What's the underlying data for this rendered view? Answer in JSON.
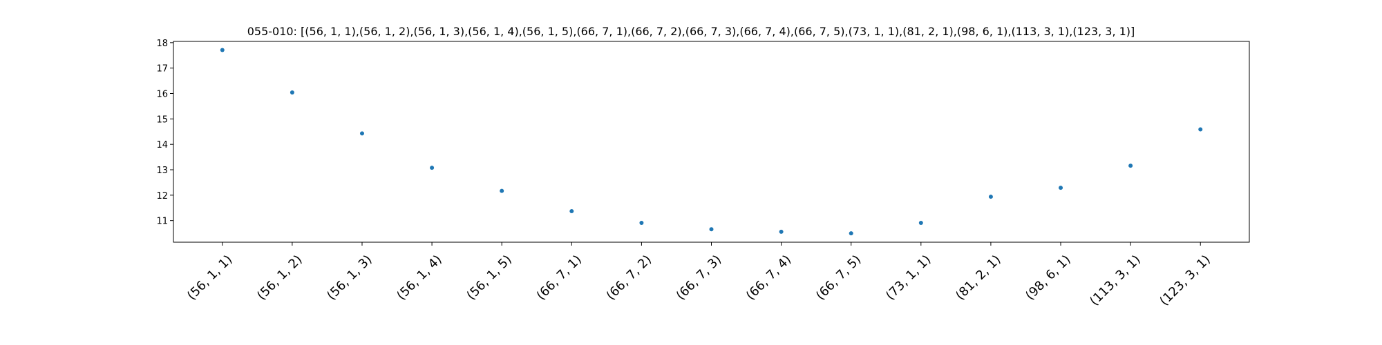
{
  "chart_data": {
    "type": "scatter",
    "title": "055-010: [(56, 1, 1),(56, 1, 2),(56, 1, 3),(56, 1, 4),(56, 1, 5),(66, 7, 1),(66, 7, 2),(66, 7, 3),(66, 7, 4),(66, 7, 5),(73, 1, 1),(81, 2, 1),(98, 6, 1),(113, 3, 1),(123, 3, 1)]",
    "xlabel": "",
    "ylabel": "",
    "categories": [
      "(56, 1, 1)",
      "(56, 1, 2)",
      "(56, 1, 3)",
      "(56, 1, 4)",
      "(56, 1, 5)",
      "(66, 7, 1)",
      "(66, 7, 2)",
      "(66, 7, 3)",
      "(66, 7, 4)",
      "(66, 7, 5)",
      "(73, 1, 1)",
      "(81, 2, 1)",
      "(98, 6, 1)",
      "(113, 3, 1)",
      "(123, 3, 1)"
    ],
    "values": [
      17.71,
      16.04,
      14.43,
      13.08,
      12.17,
      11.37,
      10.91,
      10.66,
      10.56,
      10.5,
      10.91,
      11.94,
      12.29,
      13.16,
      14.59
    ],
    "yticks": [
      11,
      12,
      13,
      14,
      15,
      16,
      17,
      18
    ],
    "ylim": [
      10.15,
      18.05
    ],
    "grid": false,
    "marker_color": "#1f77b4"
  }
}
